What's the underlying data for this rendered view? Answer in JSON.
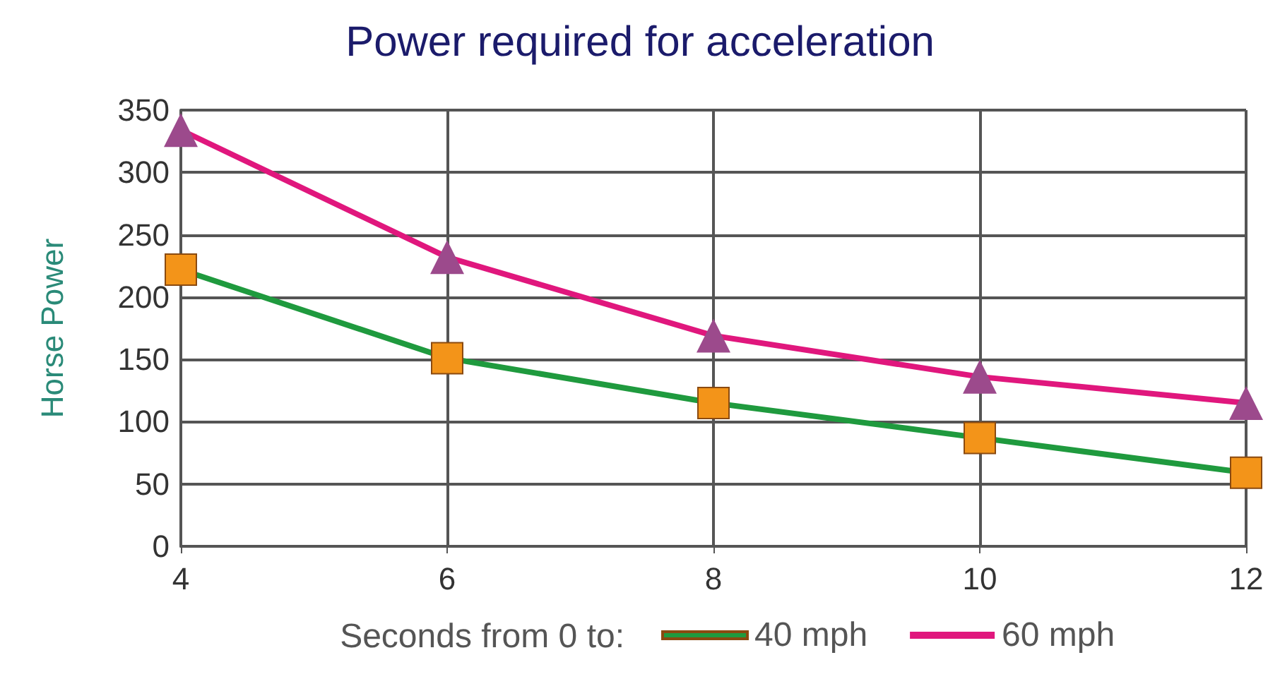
{
  "chart_data": {
    "type": "line",
    "title": "Power required for acceleration",
    "ylabel": "Horse Power",
    "legend_title": "Seconds from 0 to:",
    "x": [
      4,
      6,
      8,
      10,
      12
    ],
    "series": [
      {
        "name": "40 mph",
        "color": "#1f9a3e",
        "marker": "square",
        "colors": [
          "#f39419",
          "#f39419",
          "#f39419",
          "#f39419",
          "#f39419"
        ],
        "values": [
          222,
          151,
          115,
          87,
          59
        ]
      },
      {
        "name": "60 mph",
        "color": "#e0177d",
        "marker": "triangle",
        "colors": [
          "#9c4a8c",
          "#9c4a8c",
          "#9c4a8c",
          "#9c4a8c",
          "#9c4a8c"
        ],
        "values": [
          334,
          232,
          169,
          136,
          115
        ]
      }
    ],
    "xlim": [
      4,
      12
    ],
    "xticks": [
      4,
      6,
      8,
      10,
      12
    ],
    "ylim": [
      0,
      350
    ],
    "yticks": [
      0,
      50,
      100,
      150,
      200,
      250,
      300,
      350
    ],
    "grid": true,
    "legend": "bottom",
    "line_style": "solid"
  }
}
